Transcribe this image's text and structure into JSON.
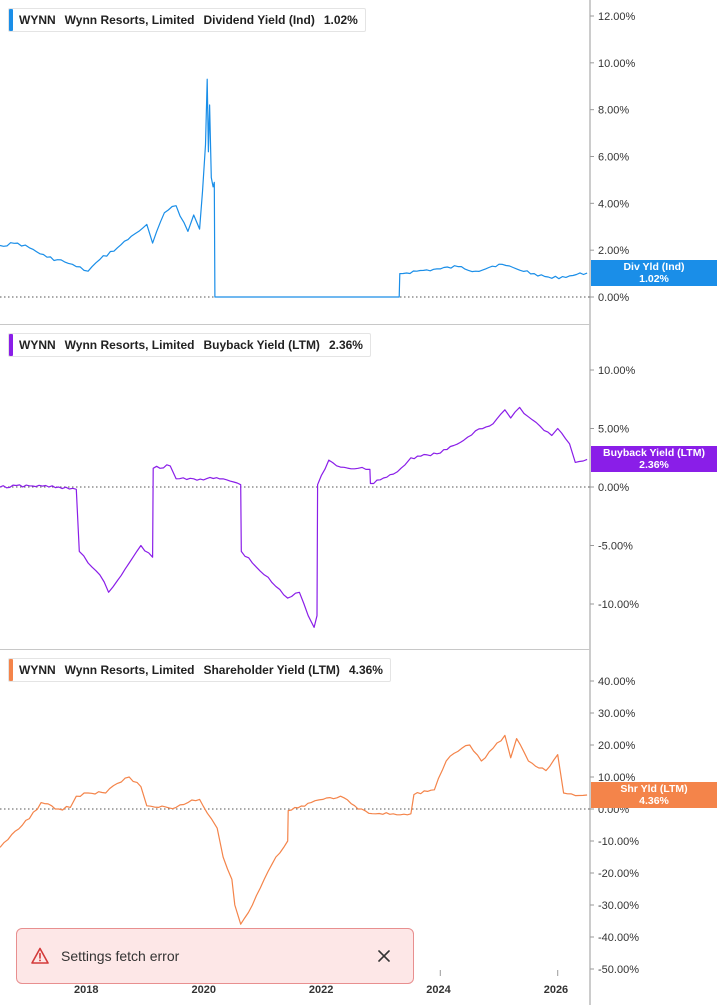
{
  "toast": {
    "message": "Settings fetch error",
    "icon": "warning-icon",
    "close_icon": "close-icon"
  },
  "x_axis": {
    "tick_labels": [
      "2018",
      "2020",
      "2022",
      "2024",
      "2026"
    ]
  },
  "panels": [
    {
      "ticker": "WYNN",
      "company": "Wynn Resorts, Limited",
      "metric": "Dividend Yield (Ind)",
      "value": "1.02%",
      "flag_line1": "Div Yld (Ind)",
      "flag_line2": "1.02%",
      "color": "#1a8ee8"
    },
    {
      "ticker": "WYNN",
      "company": "Wynn Resorts, Limited",
      "metric": "Buyback Yield (LTM)",
      "value": "2.36%",
      "flag_line1": "Buyback Yield (LTM)",
      "flag_line2": "2.36%",
      "color": "#8a1ee8"
    },
    {
      "ticker": "WYNN",
      "company": "Wynn Resorts, Limited",
      "metric": "Shareholder Yield (LTM)",
      "value": "4.36%",
      "flag_line1": "Shr Yld (LTM)",
      "flag_line2": "4.36%",
      "color": "#f4844a"
    }
  ],
  "chart_data": [
    {
      "type": "line",
      "title": "WYNN Wynn Resorts, Limited Dividend Yield (Ind) 1.02%",
      "y_unit": "%",
      "y_tick_labels": [
        "12.00%",
        "10.00%",
        "8.00%",
        "6.00%",
        "4.00%",
        "2.00%",
        "0.00%"
      ],
      "y_ticks": [
        12,
        10,
        8,
        6,
        4,
        2,
        0
      ],
      "ylim": [
        0,
        12.5
      ],
      "zero_line": true,
      "series": [
        {
          "color": "#1a8ee8",
          "x": [
            2016.5,
            2016.8,
            2017.0,
            2017.3,
            2017.6,
            2017.8,
            2018.0,
            2018.2,
            2018.5,
            2018.8,
            2019.0,
            2019.1,
            2019.3,
            2019.5,
            2019.7,
            2019.8,
            2019.85,
            2019.9,
            2019.95,
            2020.0,
            2020.03,
            2020.05,
            2020.07,
            2020.1,
            2020.13,
            2020.15,
            2020.16,
            2020.5,
            2021.0,
            2022.0,
            2023.0,
            2023.3,
            2023.31,
            2023.6,
            2024.0,
            2024.3,
            2024.6,
            2025.0,
            2025.3,
            2025.6,
            2025.9,
            2026.2,
            2026.5
          ],
          "y": [
            2.2,
            2.3,
            2.1,
            1.7,
            1.5,
            1.3,
            1.1,
            1.6,
            2.1,
            2.7,
            3.1,
            2.3,
            3.6,
            3.9,
            2.8,
            3.5,
            3.2,
            2.9,
            4.5,
            6.5,
            9.3,
            6.2,
            8.2,
            5.1,
            4.7,
            4.9,
            0.0,
            0.0,
            0.0,
            0.0,
            0.0,
            0.0,
            1.0,
            1.1,
            1.2,
            1.3,
            1.1,
            1.4,
            1.2,
            1.0,
            0.8,
            0.9,
            1.02
          ]
        }
      ]
    },
    {
      "type": "line",
      "title": "WYNN Wynn Resorts, Limited Buyback Yield (LTM) 2.36%",
      "y_unit": "%",
      "y_tick_labels": [
        "10.00%",
        "5.00%",
        "0.00%",
        "-5.00%",
        "-10.00%"
      ],
      "y_ticks": [
        10,
        5,
        0,
        -5,
        -10
      ],
      "ylim": [
        -12,
        10.5
      ],
      "zero_line": true,
      "series": [
        {
          "color": "#8a1ee8",
          "x": [
            2016.5,
            2017.0,
            2017.5,
            2017.8,
            2017.85,
            2018.0,
            2018.2,
            2018.35,
            2018.5,
            2018.7,
            2018.9,
            2019.1,
            2019.11,
            2019.4,
            2019.5,
            2019.8,
            2020.3,
            2020.6,
            2020.61,
            2020.8,
            2021.0,
            2021.2,
            2021.4,
            2021.6,
            2021.75,
            2021.85,
            2021.9,
            2021.91,
            2022.1,
            2022.3,
            2022.6,
            2022.8,
            2022.81,
            2023.2,
            2023.4,
            2023.5,
            2024.0,
            2024.4,
            2024.6,
            2024.9,
            2025.1,
            2025.2,
            2025.35,
            2025.5,
            2025.7,
            2025.9,
            2026.0,
            2026.2,
            2026.3,
            2026.5
          ],
          "y": [
            0.0,
            0.1,
            0.0,
            -0.2,
            -5.5,
            -6.5,
            -7.5,
            -9.0,
            -8.0,
            -6.5,
            -5.0,
            -6.0,
            1.6,
            1.8,
            0.7,
            0.7,
            0.7,
            0.2,
            -5.5,
            -6.5,
            -7.5,
            -8.5,
            -9.5,
            -9.0,
            -11.0,
            -12.0,
            -11.0,
            0.2,
            2.3,
            1.7,
            1.6,
            1.5,
            0.3,
            1.1,
            1.9,
            2.5,
            2.9,
            4.0,
            4.8,
            5.4,
            6.6,
            5.9,
            6.8,
            6.0,
            5.2,
            4.4,
            5.0,
            3.7,
            2.1,
            2.36
          ]
        }
      ]
    },
    {
      "type": "line",
      "title": "WYNN Wynn Resorts, Limited Shareholder Yield (LTM) 4.36%",
      "y_unit": "%",
      "y_tick_labels": [
        "40.00%",
        "30.00%",
        "20.00%",
        "10.00%",
        "0.00%",
        "-10.00%",
        "-20.00%",
        "-30.00%",
        "-40.00%",
        "-50.00%"
      ],
      "y_ticks": [
        40,
        30,
        20,
        10,
        0,
        -10,
        -20,
        -30,
        -40,
        -50
      ],
      "ylim": [
        -50,
        42
      ],
      "zero_line": true,
      "series": [
        {
          "color": "#f4844a",
          "x": [
            2016.5,
            2016.7,
            2017.0,
            2017.2,
            2017.5,
            2017.7,
            2017.8,
            2018.0,
            2018.3,
            2018.5,
            2018.7,
            2018.9,
            2019.0,
            2019.2,
            2019.5,
            2019.7,
            2019.9,
            2020.1,
            2020.2,
            2020.3,
            2020.45,
            2020.5,
            2020.6,
            2020.8,
            2021.0,
            2021.2,
            2021.4,
            2021.41,
            2021.8,
            2022.0,
            2022.3,
            2022.6,
            2022.9,
            2023.2,
            2023.5,
            2023.55,
            2023.9,
            2024.1,
            2024.3,
            2024.5,
            2024.7,
            2024.9,
            2025.1,
            2025.2,
            2025.3,
            2025.5,
            2025.8,
            2026.0,
            2026.1,
            2026.3,
            2026.5
          ],
          "y": [
            -12,
            -8,
            -3,
            2,
            0,
            0.5,
            4,
            5,
            5,
            8,
            10,
            7,
            1,
            0.5,
            0.5,
            2,
            3,
            -3,
            -6,
            -15,
            -22,
            -30,
            -36,
            -30,
            -22,
            -15,
            -10,
            -0.5,
            2,
            3,
            4,
            0,
            -1.5,
            -1.5,
            -1.5,
            4.5,
            6,
            15,
            18,
            20,
            15,
            19,
            23,
            16,
            22,
            15,
            12,
            17,
            5,
            4.2,
            4.36
          ]
        }
      ]
    }
  ]
}
